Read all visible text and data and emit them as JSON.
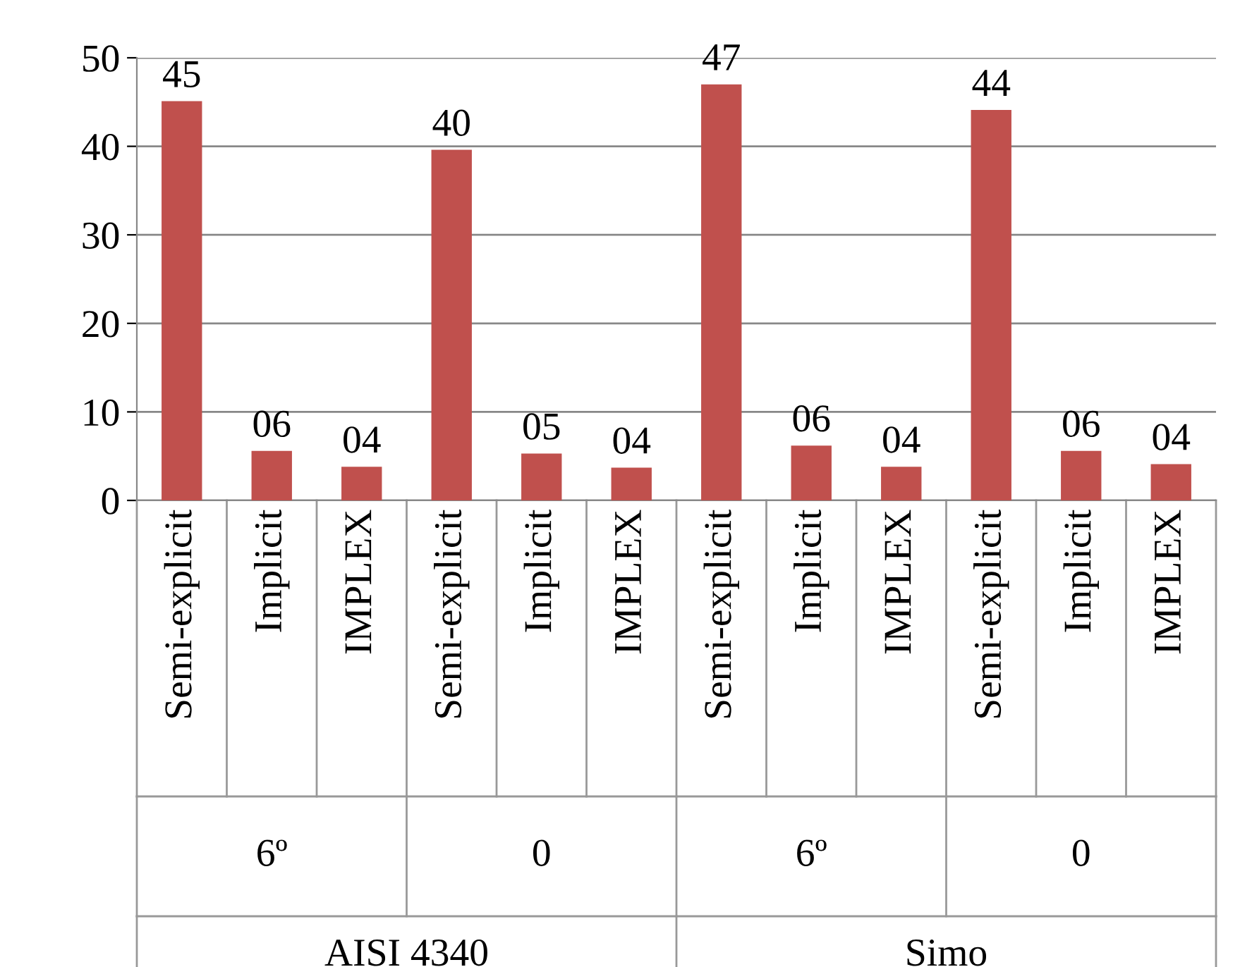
{
  "chart_data": {
    "type": "bar",
    "categories": [
      "Semi-explicit",
      "Implicit",
      "IMPLEX",
      "Semi-explicit",
      "Implicit",
      "IMPLEX",
      "Semi-explicit",
      "Implicit",
      "IMPLEX",
      "Semi-explicit",
      "Implicit",
      "IMPLEX"
    ],
    "values": [
      45.1,
      5.6,
      3.8,
      39.6,
      5.3,
      3.7,
      47.0,
      6.2,
      3.8,
      44.1,
      5.6,
      4.1
    ],
    "value_labels": [
      "45",
      "06",
      "04",
      "40",
      "05",
      "04",
      "47",
      "06",
      "04",
      "44",
      "06",
      "04"
    ],
    "color": "#c0504d",
    "ylim": [
      0,
      50
    ],
    "yticks": [
      0,
      10,
      20,
      30,
      40,
      50
    ],
    "grid": "y",
    "annotations": [
      "6º",
      "0",
      "6º",
      "0",
      "AISI 4340",
      "Simo"
    ]
  }
}
